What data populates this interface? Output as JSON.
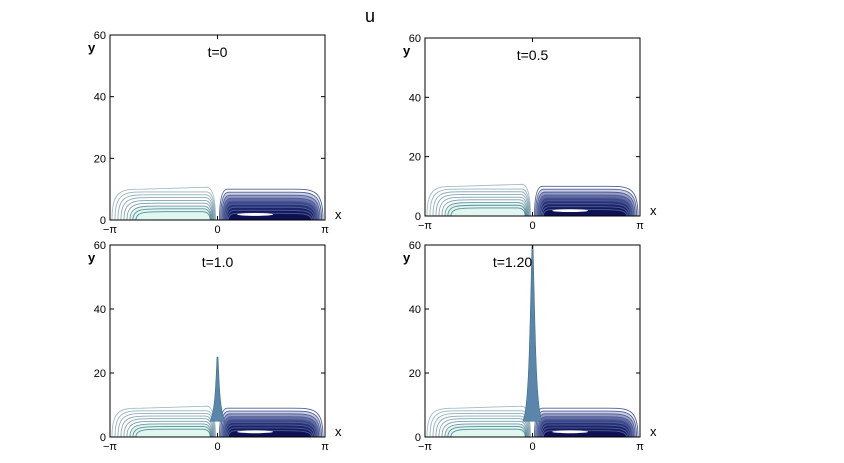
{
  "figure_title": "u",
  "chart_data": [
    {
      "type": "contour",
      "title": "t=0",
      "xlabel": "x",
      "ylabel": "y",
      "xlim": [
        -3.14159,
        3.14159
      ],
      "ylim": [
        0,
        60
      ],
      "xticks": [
        {
          "value": -3.14159,
          "label": "−π"
        },
        {
          "value": 0,
          "label": "0"
        },
        {
          "value": 3.14159,
          "label": "π"
        }
      ],
      "yticks": [
        {
          "value": 0,
          "label": "0"
        },
        {
          "value": 20,
          "label": "20"
        },
        {
          "value": 40,
          "label": "40"
        },
        {
          "value": 60,
          "label": "60"
        }
      ],
      "layer_height": 10,
      "spike_height": 0
    },
    {
      "type": "contour",
      "title": "t=0.5",
      "xlabel": "x",
      "ylabel": "y",
      "xlim": [
        -3.14159,
        3.14159
      ],
      "ylim": [
        0,
        60
      ],
      "xticks": [
        {
          "value": -3.14159,
          "label": "−π"
        },
        {
          "value": 0,
          "label": "0"
        },
        {
          "value": 3.14159,
          "label": "π"
        }
      ],
      "yticks": [
        {
          "value": 0,
          "label": "0"
        },
        {
          "value": 20,
          "label": "20"
        },
        {
          "value": 40,
          "label": "40"
        },
        {
          "value": 60,
          "label": "60"
        }
      ],
      "layer_height": 10,
      "spike_height": 0
    },
    {
      "type": "contour",
      "title": "t=1.0",
      "xlabel": "x",
      "ylabel": "y",
      "xlim": [
        -3.14159,
        3.14159
      ],
      "ylim": [
        0,
        60
      ],
      "xticks": [
        {
          "value": -3.14159,
          "label": "−π"
        },
        {
          "value": 0,
          "label": "0"
        },
        {
          "value": 3.14159,
          "label": "π"
        }
      ],
      "yticks": [
        {
          "value": 0,
          "label": "0"
        },
        {
          "value": 20,
          "label": "20"
        },
        {
          "value": 40,
          "label": "40"
        },
        {
          "value": 60,
          "label": "60"
        }
      ],
      "layer_height": 9,
      "spike_height": 25
    },
    {
      "type": "contour",
      "title": "t=1.20",
      "xlabel": "x",
      "ylabel": "y",
      "xlim": [
        -3.14159,
        3.14159
      ],
      "ylim": [
        0,
        60
      ],
      "xticks": [
        {
          "value": -3.14159,
          "label": "−π"
        },
        {
          "value": 0,
          "label": "0"
        },
        {
          "value": 3.14159,
          "label": "π"
        }
      ],
      "yticks": [
        {
          "value": 0,
          "label": "0"
        },
        {
          "value": 20,
          "label": "20"
        },
        {
          "value": 40,
          "label": "40"
        },
        {
          "value": 60,
          "label": "60"
        }
      ],
      "layer_height": 9,
      "spike_height": 60
    }
  ],
  "colors": {
    "positive_fill": "#dff7ef",
    "positive_line": "#3a6f86",
    "negative_fill": "#0f1e52",
    "negative_line": "#4e5f95",
    "spike": "#5a86ab"
  }
}
